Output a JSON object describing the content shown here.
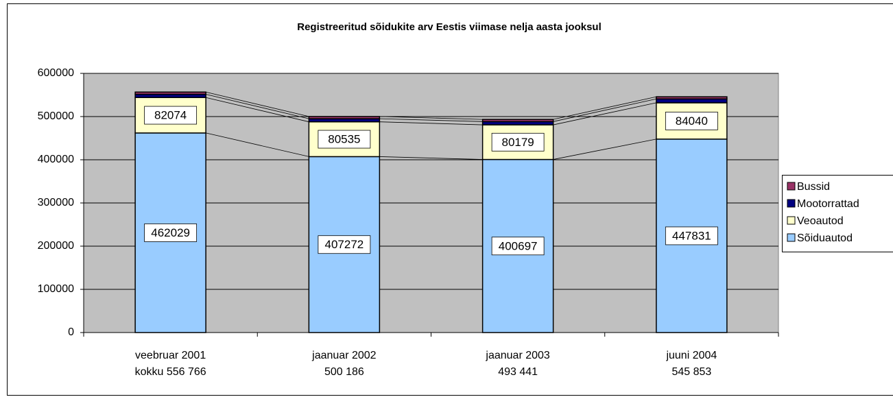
{
  "chart_data": {
    "type": "stacked-bar",
    "title": "Registreeritud sõidukite arv Eestis viimase nelja aasta jooksul",
    "categories": [
      [
        "veebruar 2001",
        "kokku 556 766"
      ],
      [
        "jaanuar 2002",
        "500 186"
      ],
      [
        "jaanuar 2003",
        "493 441"
      ],
      [
        "juuni 2004",
        "545 853"
      ]
    ],
    "series": [
      {
        "name": "Sõiduautod",
        "color": "#99ccff",
        "values": [
          462029,
          407272,
          400697,
          447831
        ],
        "data_labels": true
      },
      {
        "name": "Veoautod",
        "color": "#ffffcc",
        "values": [
          82074,
          80535,
          80179,
          84040
        ],
        "data_labels": true
      },
      {
        "name": "Mootorrattad",
        "color": "#000080",
        "values": [
          7500,
          7200,
          7500,
          9000
        ],
        "data_labels": false
      },
      {
        "name": "Bussid",
        "color": "#993366",
        "values": [
          5163,
          5179,
          5065,
          4982
        ],
        "data_labels": false
      }
    ],
    "ylim": [
      0,
      600000
    ],
    "yticks": [
      0,
      100000,
      200000,
      300000,
      400000,
      500000,
      600000
    ],
    "grid": true,
    "legend": "right",
    "series_lines": true
  }
}
